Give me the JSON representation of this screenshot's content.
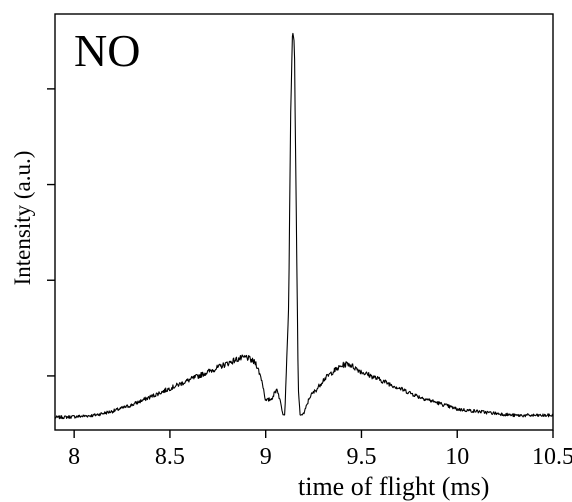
{
  "chart_data": {
    "type": "line",
    "title": "NO",
    "xlabel": "time of flight (ms)",
    "ylabel": "Intensity (a.u.)",
    "xlim": [
      7.9,
      10.5
    ],
    "ylim": [
      0,
      1
    ],
    "x_ticks": [
      8,
      8.5,
      9,
      9.5,
      10,
      10.5
    ],
    "x_tick_labels": [
      "8",
      "8.5",
      "9",
      "9.5",
      "10",
      "10.5"
    ],
    "y_ticks": [
      0.13,
      0.36,
      0.59,
      0.82
    ],
    "y_tick_labels": [
      "",
      "",
      "",
      ""
    ],
    "grid": false,
    "legend": "none",
    "line_color": "#000000",
    "series": [
      {
        "x": [
          7.9,
          8.0,
          8.1,
          8.2,
          8.3,
          8.4,
          8.5,
          8.6,
          8.7,
          8.8,
          8.85,
          8.9,
          8.95,
          8.98,
          9.0,
          9.03,
          9.06,
          9.09,
          9.1,
          9.12,
          9.13,
          9.14,
          9.15,
          9.16,
          9.17,
          9.18,
          9.2,
          9.23,
          9.27,
          9.3,
          9.35,
          9.4,
          9.43,
          9.5,
          9.6,
          9.7,
          9.8,
          9.9,
          10.0,
          10.1,
          10.2,
          10.3,
          10.4,
          10.5
        ],
        "y": [
          0.03,
          0.032,
          0.035,
          0.045,
          0.06,
          0.08,
          0.1,
          0.12,
          0.14,
          0.16,
          0.17,
          0.175,
          0.16,
          0.12,
          0.07,
          0.075,
          0.1,
          0.04,
          0.04,
          0.3,
          0.75,
          0.96,
          0.93,
          0.5,
          0.1,
          0.035,
          0.04,
          0.08,
          0.1,
          0.12,
          0.14,
          0.155,
          0.16,
          0.14,
          0.12,
          0.1,
          0.08,
          0.065,
          0.05,
          0.045,
          0.04,
          0.035,
          0.035,
          0.035
        ]
      }
    ]
  }
}
